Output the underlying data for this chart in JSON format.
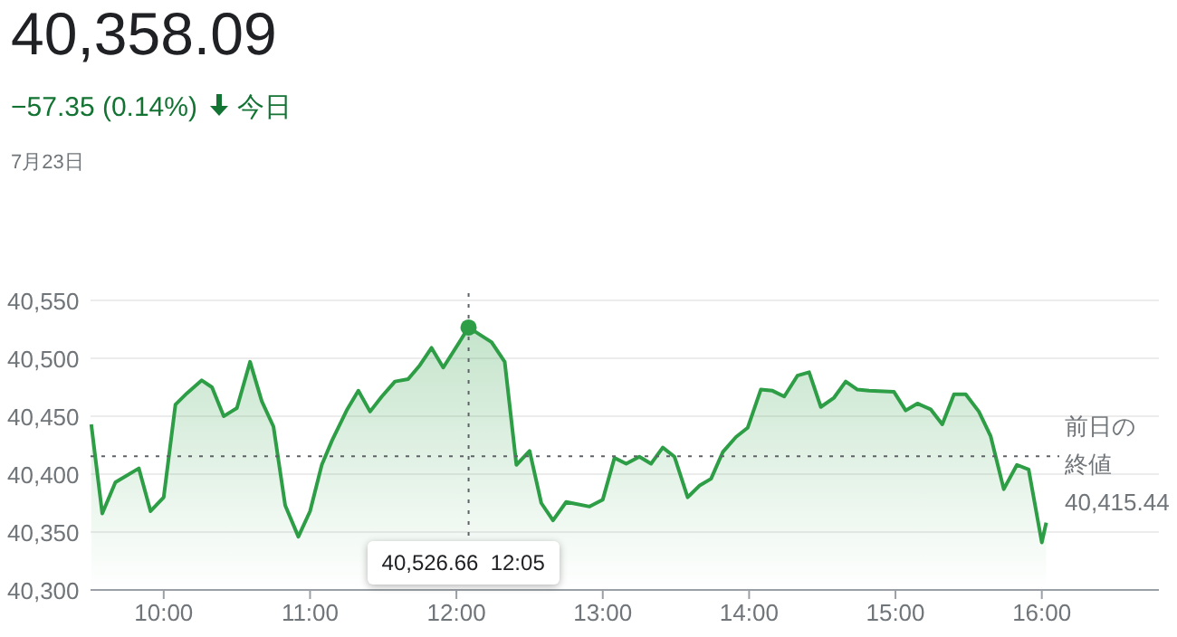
{
  "chart_data": {
    "type": "area",
    "title": "40,358.09",
    "subtitle": "−57.35 (0.14%) 今日",
    "annotations": [
      "7月23日"
    ],
    "x": [
      9.505,
      9.58,
      9.67,
      9.83,
      9.91,
      10.0,
      10.08,
      10.16,
      10.26,
      10.33,
      10.41,
      10.5,
      10.59,
      10.67,
      10.75,
      10.83,
      10.92,
      11.0,
      11.08,
      11.15,
      11.25,
      11.33,
      11.41,
      11.49,
      11.58,
      11.67,
      11.75,
      11.83,
      11.91,
      12.0833,
      12.24,
      12.33,
      12.41,
      12.5,
      12.58,
      12.66,
      12.75,
      12.91,
      13.0,
      13.08,
      13.16,
      13.25,
      13.33,
      13.41,
      13.49,
      13.58,
      13.66,
      13.74,
      13.82,
      13.91,
      13.99,
      14.08,
      14.16,
      14.24,
      14.33,
      14.41,
      14.49,
      14.58,
      14.66,
      14.74,
      14.82,
      14.99,
      15.07,
      15.15,
      15.24,
      15.32,
      15.4,
      15.48,
      15.57,
      15.65,
      15.74,
      15.83,
      15.91,
      16.0,
      16.03
    ],
    "values": [
      40443,
      40366,
      40393,
      40405,
      40368,
      40380,
      40460,
      40470,
      40481,
      40475,
      40450,
      40457,
      40497,
      40463,
      40441,
      40373,
      40346,
      40368,
      40408,
      40429,
      40455,
      40472,
      40454,
      40467,
      40480,
      40482,
      40494,
      40509,
      40492,
      40526.66,
      40514,
      40497,
      40408,
      40420,
      40375,
      40360,
      40376,
      40372,
      40378,
      40414,
      40409,
      40415,
      40409,
      40423,
      40415,
      40380,
      40390,
      40396,
      40419,
      40432,
      40440,
      40473,
      40472,
      40467,
      40485,
      40488,
      40458,
      40466,
      40480,
      40473,
      40472,
      40471,
      40455,
      40461,
      40456,
      40443,
      40469,
      40469,
      40454,
      40433,
      40387,
      40408,
      40404,
      40341,
      40358.09
    ],
    "color": "#2e9e46",
    "xlim": [
      9.5,
      16.8
    ],
    "ylim": [
      40300,
      40550
    ],
    "xticks": [
      {
        "value": 10,
        "label": "10:00"
      },
      {
        "value": 11,
        "label": "11:00"
      },
      {
        "value": 12,
        "label": "12:00"
      },
      {
        "value": 13,
        "label": "13:00"
      },
      {
        "value": 14,
        "label": "14:00"
      },
      {
        "value": 15,
        "label": "15:00"
      },
      {
        "value": 16,
        "label": "16:00"
      }
    ],
    "yticks": [
      {
        "value": 40300,
        "label": "40,300"
      },
      {
        "value": 40350,
        "label": "40,350"
      },
      {
        "value": 40400,
        "label": "40,400"
      },
      {
        "value": 40450,
        "label": "40,450"
      },
      {
        "value": 40500,
        "label": "40,500"
      },
      {
        "value": 40550,
        "label": "40,550"
      }
    ],
    "grid": "y",
    "ref_lines": [
      {
        "axis": "y",
        "value": 40415.44,
        "label": "前日の終値 40,415.44",
        "line_style": "dotted"
      },
      {
        "axis": "x",
        "value": 12.0833,
        "label": "40,526.66  12:05",
        "line_style": "dotted"
      }
    ]
  }
}
